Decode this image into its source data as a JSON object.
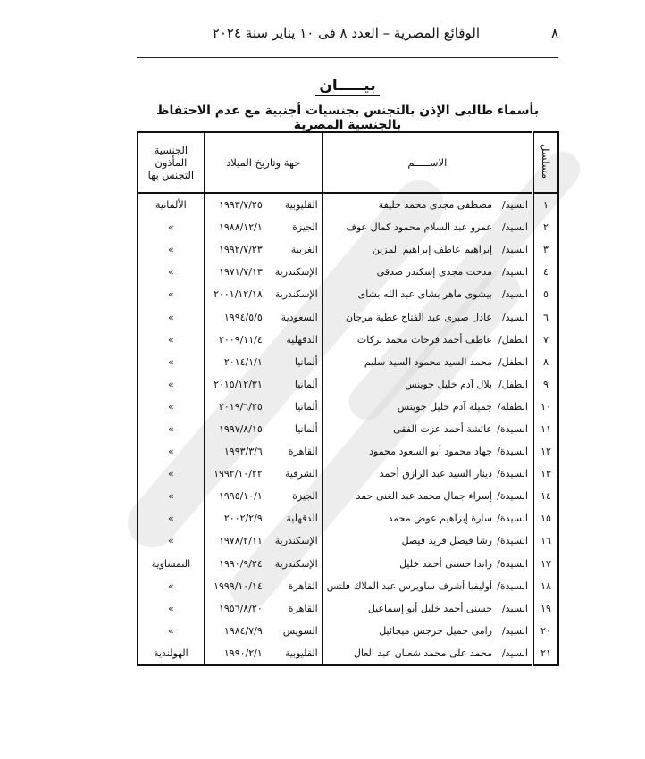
{
  "header": {
    "page_number": "٨",
    "running_title": "الوقائع المصرية – العدد ٨ فى ١٠ يناير سنة ٢٠٢٤"
  },
  "heading": "بيـــــان",
  "subheading": "بأسماء طالبى الإذن بالتجنس بجنسيات أجنبية مع عدم الاحتفاظ بالجنسية المصرية",
  "table": {
    "columns": {
      "serial": "مسلسل",
      "name": "الاســـــم",
      "birth": "جهة وتاريخ الميلاد",
      "nationality": "الجنسية المأذون التجنس بها"
    },
    "rows": [
      {
        "n": "١",
        "title": "السيد/",
        "name": "مصطفى مجدى محمد خليفة",
        "place": "القليوبية",
        "date": "١٩٩٣/٧/٢٥",
        "nat": "الألمانية"
      },
      {
        "n": "٢",
        "title": "السيد/",
        "name": "عمرو عبد السلام محمود كمال عوف",
        "place": "الجيزة",
        "date": "١٩٨٨/١٢/١",
        "nat": "»"
      },
      {
        "n": "٣",
        "title": "السيد/",
        "name": "إبراهيم عاطف إبراهيم المزين",
        "place": "الغربية",
        "date": "١٩٩٢/٧/٢٣",
        "nat": "»"
      },
      {
        "n": "٤",
        "title": "السيد/",
        "name": "مدحت مجدى إسكندر صدقى",
        "place": "الإسكندرية",
        "date": "١٩٧١/٧/١٣",
        "nat": "»"
      },
      {
        "n": "٥",
        "title": "السيد/",
        "name": "بيشوى ماهر بشاى عبد الله بشاى",
        "place": "الإسكندرية",
        "date": "٢٠٠١/١٢/١٨",
        "nat": "»"
      },
      {
        "n": "٦",
        "title": "السيد/",
        "name": "عادل صبرى عبد الفتاح عطية مرجان",
        "place": "السعودية",
        "date": "١٩٩٤/٥/٥",
        "nat": "»"
      },
      {
        "n": "٧",
        "title": "الطفل/",
        "name": "عاطف أحمد فرحات محمد بركات",
        "place": "الدقهلية",
        "date": "٢٠٠٩/١١/٤",
        "nat": "»"
      },
      {
        "n": "٨",
        "title": "الطفل/",
        "name": "محمد السيد محمود السيد سليم",
        "place": "ألمانيا",
        "date": "٢٠١٤/١/١",
        "nat": "»"
      },
      {
        "n": "٩",
        "title": "الطفل/",
        "name": "بلال آدم خليل جوينس",
        "place": "ألمانيا",
        "date": "٢٠١٥/١٢/٣١",
        "nat": "»"
      },
      {
        "n": "١٠",
        "title": "الطفلة/",
        "name": "جميلة آدم خليل جوينس",
        "place": "ألمانيا",
        "date": "٢٠١٩/٦/٢٥",
        "nat": "»"
      },
      {
        "n": "١١",
        "title": "السيدة/",
        "name": "عائشة أحمد عزت الفقى",
        "place": "ألمانيا",
        "date": "١٩٩٧/٨/١٥",
        "nat": "»"
      },
      {
        "n": "١٢",
        "title": "السيدة/",
        "name": "جهاد محمود أبو السعود محمود",
        "place": "القاهرة",
        "date": "١٩٩٣/٣/٦",
        "nat": "»"
      },
      {
        "n": "١٣",
        "title": "السيدة/",
        "name": "دينار السيد عبد الرازق أحمد",
        "place": "الشرقية",
        "date": "١٩٩٢/١٠/٢٢",
        "nat": "»"
      },
      {
        "n": "١٤",
        "title": "السيدة/",
        "name": "إسراء جمال محمد عبد الغنى حمد",
        "place": "الجيزة",
        "date": "١٩٩٥/١٠/١",
        "nat": "»"
      },
      {
        "n": "١٥",
        "title": "السيدة/",
        "name": "سارة إبراهيم عوض محمد",
        "place": "الدقهلية",
        "date": "٢٠٠٢/٢/٩",
        "nat": "»"
      },
      {
        "n": "١٦",
        "title": "السيدة/",
        "name": "رشا فيصل فريد فيصل",
        "place": "الإسكندرية",
        "date": "١٩٧٨/٢/١١",
        "nat": "»"
      },
      {
        "n": "١٧",
        "title": "السيدة/",
        "name": "راندا حسنى أحمد خليل",
        "place": "الإسكندرية",
        "date": "١٩٩٠/٩/٢٤",
        "nat": "النمساوية"
      },
      {
        "n": "١٨",
        "title": "السيدة/",
        "name": "أوليفيا أشرف ساويرس عبد الملاك فلتس",
        "place": "القاهرة",
        "date": "١٩٩٩/١٠/١٤",
        "nat": "»"
      },
      {
        "n": "١٩",
        "title": "السيد/",
        "name": "حسنى أحمد خليل أبو إسماعيل",
        "place": "القاهرة",
        "date": "١٩٥٦/٨/٢٠",
        "nat": "»"
      },
      {
        "n": "٢٠",
        "title": "السيد/",
        "name": "رامى جميل جرجس ميخائيل",
        "place": "السويس",
        "date": "١٩٨٤/٧/٩",
        "nat": "»"
      },
      {
        "n": "٢١",
        "title": "السيد/",
        "name": "محمد على محمد شعبان عبد العال",
        "place": "القليوبية",
        "date": "١٩٩٠/٢/١",
        "nat": "الهولندية"
      }
    ]
  }
}
